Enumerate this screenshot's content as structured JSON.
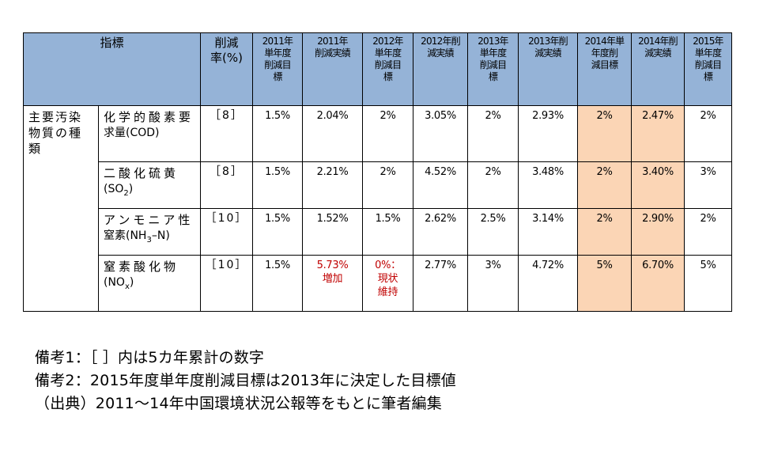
{
  "header": {
    "indicator": "指標",
    "rate": [
      "削減",
      "率(%)"
    ],
    "columns": [
      [
        "2011年",
        "単年度",
        "削減目",
        "標"
      ],
      [
        "2011年",
        "削減実績"
      ],
      [
        "2012年",
        "単年度",
        "削減目",
        "標"
      ],
      [
        "2012年削",
        "減実績"
      ],
      [
        "2013年",
        "単年度",
        "削減目",
        "標"
      ],
      [
        "2013年削",
        "減実績"
      ],
      [
        "2014年単",
        "年度削",
        "減目標"
      ],
      [
        "2014年削",
        "減実績"
      ],
      [
        "2015年",
        "単年度",
        "削減目",
        "標"
      ]
    ]
  },
  "category": [
    "主要汚染",
    "物質の種",
    "類"
  ],
  "rows": [
    {
      "name_line1": "化学的酸素要",
      "name_line2": "求量(COD)",
      "rate": "［8］",
      "values": [
        "1.5%",
        "2.04%",
        "2%",
        "3.05%",
        "2%",
        "2.93%",
        "2%",
        "2.47%",
        "2%"
      ]
    },
    {
      "name_line1": "二酸化硫黄",
      "name_line2": "(SO",
      "name_sub": "2",
      "name_tail": ")",
      "rate": "［8］",
      "values": [
        "1.5%",
        "2.21%",
        "2%",
        "4.52%",
        "2%",
        "3.48%",
        "2%",
        "3.40%",
        "3%"
      ]
    },
    {
      "name_line1": "アンモニア性",
      "name_line2": "窒素(NH",
      "name_sub": "3",
      "name_tail": "–N)",
      "rate": "［10］",
      "values": [
        "1.5%",
        "1.52%",
        "1.5%",
        "2.62%",
        "2.5%",
        "3.14%",
        "2%",
        "2.90%",
        "2%"
      ]
    },
    {
      "name_line1": "窒素酸化物",
      "name_line2": "(NO",
      "name_sub": "x",
      "name_tail": ")",
      "rate": "［10］",
      "values": [
        "1.5%",
        "5.73%|増加",
        "0%：|現状|維持",
        "2.77%",
        "3%",
        "4.72%",
        "5%",
        "6.70%",
        "5%"
      ]
    }
  ],
  "highlight_color": "#fbd5b5",
  "header_color": "#95b3d7",
  "alert_color": "#c00000",
  "notes": [
    "備考1：［ ］内は5カ年累計の数字",
    "備考2：2015年度単年度削減目標は2013年に決定した目標値",
    "（出典）2011～14年中国環境状況公報等をもとに筆者編集"
  ]
}
